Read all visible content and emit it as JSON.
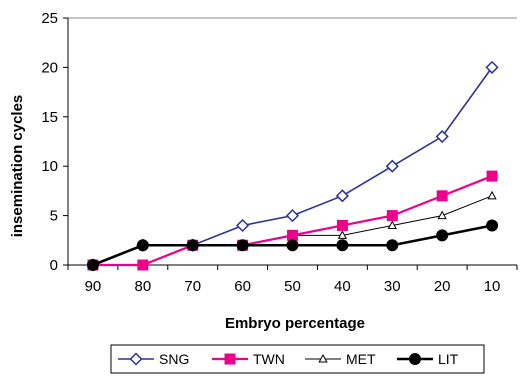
{
  "chart_data": {
    "type": "line",
    "title": "",
    "xlabel": "Embryo percentage",
    "ylabel": "insemination cycles",
    "categories": [
      "90",
      "80",
      "70",
      "60",
      "50",
      "40",
      "30",
      "20",
      "10"
    ],
    "ylim": [
      0,
      25
    ],
    "yticks": [
      "0",
      "5",
      "10",
      "15",
      "20",
      "25"
    ],
    "grid": false,
    "legend_position": "bottom",
    "series": [
      {
        "name": "SNG",
        "values": [
          0,
          2,
          2,
          4,
          5,
          7,
          10,
          13,
          20
        ],
        "color": "#2e3192",
        "marker": "diamond-open"
      },
      {
        "name": "TWN",
        "values": [
          0,
          0,
          2,
          2,
          3,
          4,
          5,
          7,
          9
        ],
        "color": "#ec008c",
        "marker": "square-filled"
      },
      {
        "name": "MET",
        "values": [
          0,
          2,
          2,
          2,
          3,
          3,
          4,
          5,
          7
        ],
        "color": "#000000",
        "marker": "triangle-open"
      },
      {
        "name": "LIT",
        "values": [
          0,
          2,
          2,
          2,
          2,
          2,
          2,
          3,
          4
        ],
        "color": "#000000",
        "marker": "circle-filled"
      }
    ]
  }
}
